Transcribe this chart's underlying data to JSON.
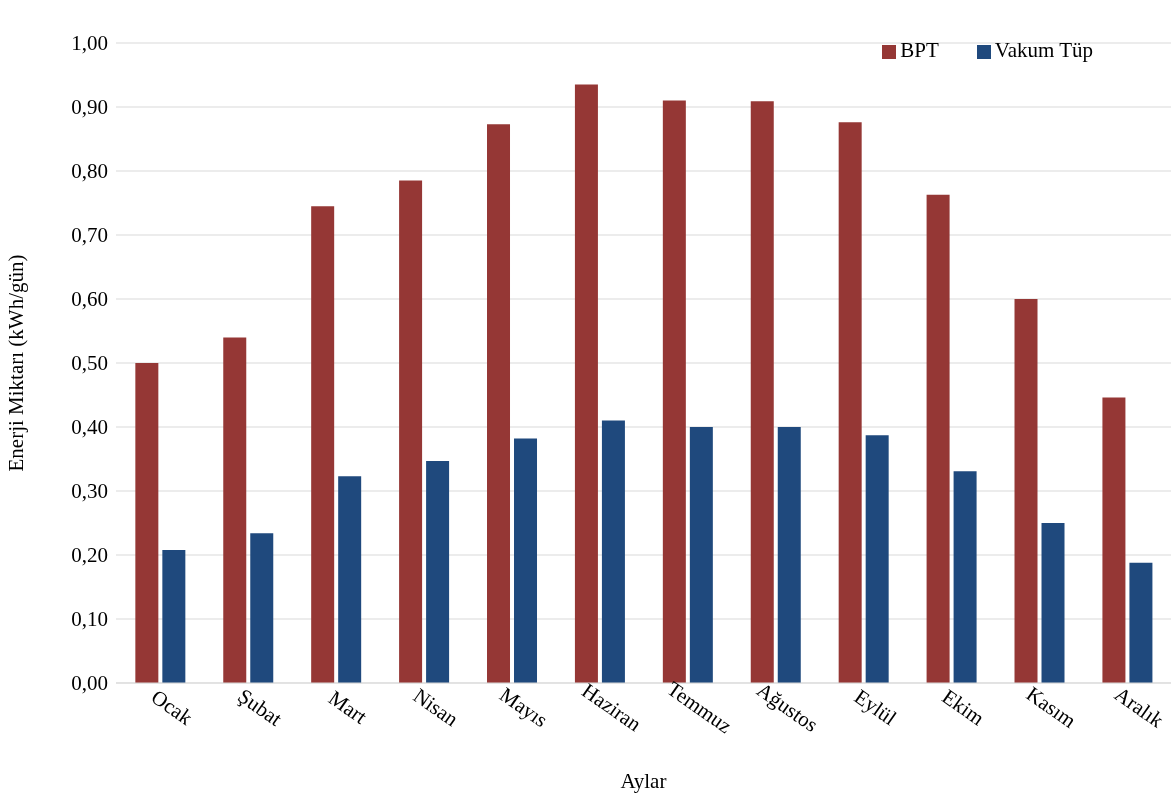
{
  "chart_data": {
    "type": "bar",
    "xlabel": "Aylar",
    "ylabel": "Enerji Miktarı (kWh/gün)",
    "categories": [
      "Ocak",
      "Şubat",
      "Mart",
      "Nisan",
      "Mayıs",
      "Haziran",
      "Temmuz",
      "Ağustos",
      "Eylül",
      "Ekim",
      "Kasım",
      "Aralık"
    ],
    "series": [
      {
        "name": "BPT",
        "color": "#953735",
        "values": [
          0.5,
          0.54,
          0.745,
          0.785,
          0.873,
          0.935,
          0.91,
          0.909,
          0.876,
          0.763,
          0.6,
          0.446
        ]
      },
      {
        "name": "Vakum Tüp",
        "color": "#1f497d",
        "values": [
          0.208,
          0.234,
          0.323,
          0.347,
          0.382,
          0.41,
          0.4,
          0.4,
          0.387,
          0.331,
          0.25,
          0.188
        ]
      }
    ],
    "ylim": [
      0,
      1
    ],
    "yticks": [
      {
        "value": 0,
        "label": "0,00"
      },
      {
        "value": 0.1,
        "label": "0,10"
      },
      {
        "value": 0.2,
        "label": "0,20"
      },
      {
        "value": 0.3,
        "label": "0,30"
      },
      {
        "value": 0.4,
        "label": "0,40"
      },
      {
        "value": 0.5,
        "label": "0,50"
      },
      {
        "value": 0.6,
        "label": "0,60"
      },
      {
        "value": 0.7,
        "label": "0,70"
      },
      {
        "value": 0.8,
        "label": "0,80"
      },
      {
        "value": 0.9,
        "label": "0,90"
      },
      {
        "value": 1,
        "label": "1,00"
      }
    ],
    "grid": "y",
    "legend": "top right"
  }
}
